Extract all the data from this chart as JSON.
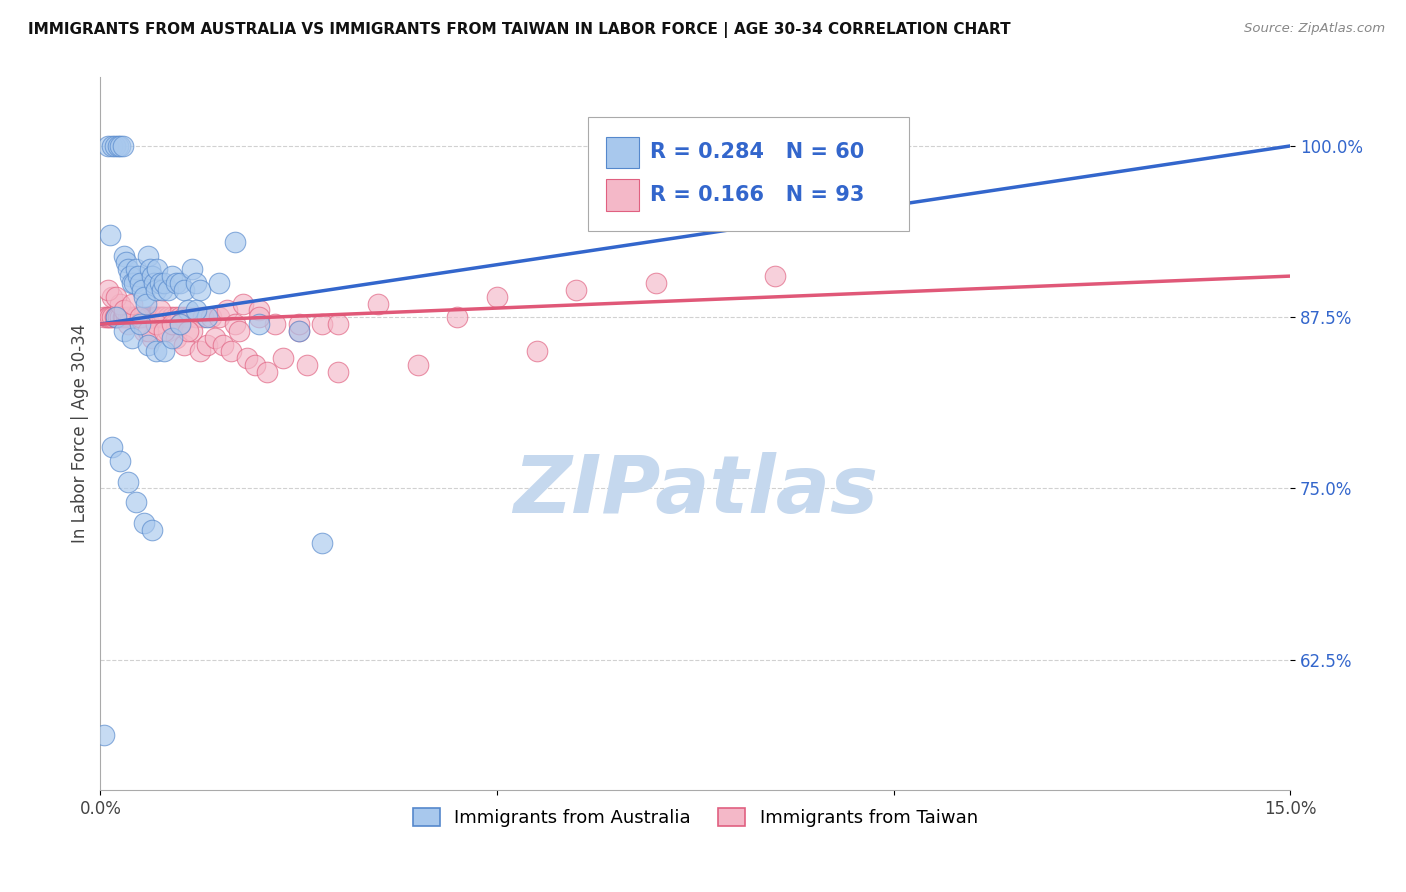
{
  "title": "IMMIGRANTS FROM AUSTRALIA VS IMMIGRANTS FROM TAIWAN IN LABOR FORCE | AGE 30-34 CORRELATION CHART",
  "source": "Source: ZipAtlas.com",
  "ylabel": "In Labor Force | Age 30-34",
  "xlim": [
    0.0,
    15.0
  ],
  "ylim": [
    53.0,
    105.0
  ],
  "y_ticks": [
    62.5,
    75.0,
    87.5,
    100.0
  ],
  "y_tick_labels": [
    "62.5%",
    "75.0%",
    "87.5%",
    "100.0%"
  ],
  "australia_color": "#a8c8ed",
  "taiwan_color": "#f4b8c8",
  "australia_edge_color": "#5588cc",
  "taiwan_edge_color": "#e06080",
  "australia_line_color": "#3366cc",
  "taiwan_line_color": "#e05878",
  "australia_R": 0.284,
  "australia_N": 60,
  "taiwan_R": 0.166,
  "taiwan_N": 93,
  "legend_text_color": "#3366cc",
  "legend_label_australia": "Immigrants from Australia",
  "legend_label_taiwan": "Immigrants from Taiwan",
  "watermark": "ZIPatlas",
  "watermark_color": "#c5d8ee",
  "australia_x": [
    0.1,
    0.15,
    0.18,
    0.22,
    0.25,
    0.28,
    0.3,
    0.32,
    0.35,
    0.38,
    0.4,
    0.42,
    0.45,
    0.48,
    0.5,
    0.52,
    0.55,
    0.58,
    0.6,
    0.62,
    0.65,
    0.68,
    0.7,
    0.72,
    0.75,
    0.78,
    0.8,
    0.85,
    0.9,
    0.95,
    1.0,
    1.05,
    1.1,
    1.15,
    1.2,
    1.25,
    1.35,
    1.5,
    1.7,
    2.0,
    2.5,
    0.12,
    0.2,
    0.3,
    0.4,
    0.5,
    0.6,
    0.7,
    0.8,
    0.9,
    1.0,
    1.2,
    0.15,
    0.25,
    0.35,
    0.45,
    0.55,
    0.65,
    2.8,
    0.05
  ],
  "australia_y": [
    100.0,
    100.0,
    100.0,
    100.0,
    100.0,
    100.0,
    92.0,
    91.5,
    91.0,
    90.5,
    90.0,
    90.0,
    91.0,
    90.5,
    90.0,
    89.5,
    89.0,
    88.5,
    92.0,
    91.0,
    90.5,
    90.0,
    89.5,
    91.0,
    90.0,
    89.5,
    90.0,
    89.5,
    90.5,
    90.0,
    90.0,
    89.5,
    88.0,
    91.0,
    90.0,
    89.5,
    87.5,
    90.0,
    93.0,
    87.0,
    86.5,
    93.5,
    87.5,
    86.5,
    86.0,
    87.0,
    85.5,
    85.0,
    85.0,
    86.0,
    87.0,
    88.0,
    78.0,
    77.0,
    75.5,
    74.0,
    72.5,
    72.0,
    71.0,
    57.0
  ],
  "taiwan_x": [
    0.05,
    0.08,
    0.1,
    0.12,
    0.15,
    0.18,
    0.2,
    0.22,
    0.25,
    0.28,
    0.3,
    0.32,
    0.35,
    0.38,
    0.4,
    0.42,
    0.45,
    0.48,
    0.5,
    0.52,
    0.55,
    0.58,
    0.6,
    0.62,
    0.65,
    0.68,
    0.7,
    0.72,
    0.75,
    0.78,
    0.8,
    0.85,
    0.9,
    0.95,
    1.0,
    1.05,
    1.1,
    1.2,
    1.3,
    1.4,
    1.5,
    1.6,
    1.7,
    1.8,
    2.0,
    2.2,
    2.5,
    2.8,
    3.5,
    4.5,
    5.0,
    6.0,
    7.0,
    0.15,
    0.25,
    0.35,
    0.45,
    0.55,
    0.65,
    0.75,
    0.85,
    0.95,
    1.05,
    1.15,
    1.25,
    1.35,
    1.45,
    1.55,
    1.65,
    1.75,
    1.85,
    1.95,
    2.1,
    2.3,
    2.6,
    3.0,
    4.0,
    5.5,
    0.1,
    0.2,
    0.3,
    0.4,
    0.5,
    0.6,
    0.7,
    0.8,
    0.9,
    1.0,
    1.1,
    2.0,
    2.5,
    3.0,
    8.5
  ],
  "taiwan_y": [
    87.5,
    87.5,
    87.5,
    87.5,
    87.5,
    87.5,
    87.5,
    87.5,
    87.5,
    87.5,
    87.5,
    87.5,
    87.5,
    87.5,
    87.5,
    87.5,
    87.5,
    87.5,
    87.5,
    87.5,
    87.5,
    87.5,
    87.5,
    87.5,
    87.5,
    87.5,
    87.5,
    87.5,
    87.5,
    87.5,
    87.5,
    87.5,
    87.5,
    87.5,
    87.5,
    87.5,
    87.5,
    87.5,
    87.5,
    87.5,
    87.5,
    88.0,
    87.0,
    88.5,
    88.0,
    87.0,
    86.5,
    87.0,
    88.5,
    87.5,
    89.0,
    89.5,
    90.0,
    89.0,
    88.5,
    87.0,
    87.5,
    86.5,
    86.0,
    88.0,
    86.5,
    86.0,
    85.5,
    86.5,
    85.0,
    85.5,
    86.0,
    85.5,
    85.0,
    86.5,
    84.5,
    84.0,
    83.5,
    84.5,
    84.0,
    83.5,
    84.0,
    85.0,
    89.5,
    89.0,
    88.0,
    88.5,
    87.5,
    86.5,
    87.0,
    86.5,
    87.0,
    87.0,
    86.5,
    87.5,
    87.0,
    87.0,
    90.5
  ]
}
